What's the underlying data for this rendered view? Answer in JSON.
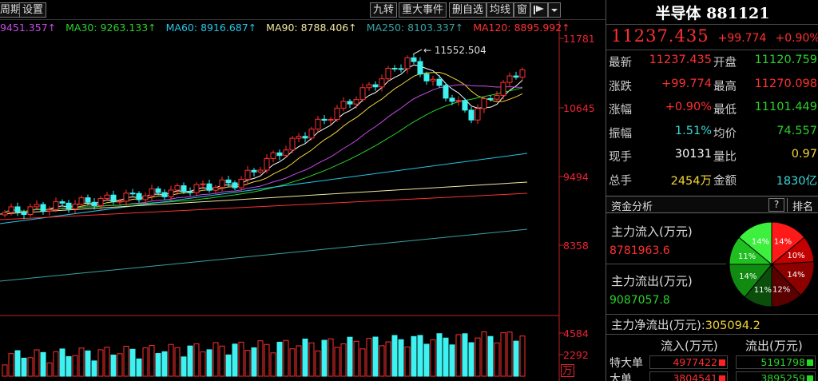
{
  "toolbar": {
    "left_items": [
      "周期",
      "设置"
    ],
    "right_items": [
      "九转",
      "重大事件",
      "删自选",
      "均线",
      "窗"
    ]
  },
  "ma_legend": [
    {
      "text": "9451.357↑",
      "color": "#c44ce6"
    },
    {
      "text": "MA30: 9263.133↑",
      "color": "#2ad12a"
    },
    {
      "text": "MA60: 8916.687↑",
      "color": "#25c4e8"
    },
    {
      "text": "MA90: 8788.406↑",
      "color": "#f2e6a0"
    },
    {
      "text": "MA250: 8103.337↑",
      "color": "#3aa3a3"
    },
    {
      "text": "MA120: 8895.992↑",
      "color": "#ff3030"
    }
  ],
  "chart": {
    "y_ticks": [
      "11781",
      "10645",
      "9494",
      "8358"
    ],
    "vol_ticks": [
      "4584",
      "2292"
    ],
    "vol_unit": "万",
    "annotation": "11552.504",
    "colors": {
      "up": "#ff3030",
      "down": "#3ff2f2"
    }
  },
  "quote": {
    "name": "半导体",
    "code": "881121",
    "price": "11237.435",
    "change": "+99.774",
    "change_pct": "+0.90%",
    "rows": [
      {
        "l": "最新",
        "v1": "11237.435",
        "c1": "red",
        "l2": "开盘",
        "v2": "11120.759",
        "c2": "green"
      },
      {
        "l": "涨跌",
        "v1": "+99.774",
        "c1": "red",
        "l2": "最高",
        "v2": "11270.098",
        "c2": "red"
      },
      {
        "l": "涨幅",
        "v1": "+0.90%",
        "c1": "red",
        "l2": "最低",
        "v2": "11101.449",
        "c2": "green"
      },
      {
        "l": "振幅",
        "v1": "1.51%",
        "c1": "cyan",
        "l2": "均价",
        "v2": "74.557",
        "c2": "green"
      },
      {
        "l": "现手",
        "v1": "30131",
        "c1": "white",
        "l2": "量比",
        "v2": "0.97",
        "c2": "yellow"
      },
      {
        "l": "总手",
        "v1": "2454万",
        "c1": "yellow",
        "l2": "金额",
        "v2": "1830亿",
        "c2": "cyan"
      }
    ]
  },
  "fund": {
    "title": "资金分析",
    "help": "?",
    "rank": "排名",
    "inflow_label": "主力流入(万元)",
    "inflow_value": "8781963.6",
    "outflow_label": "主力流出(万元)",
    "outflow_value": "9087057.8",
    "net_label": "主力净流出(万元):",
    "net_value": "305094.2",
    "pie": [
      {
        "label": "14%",
        "value": 14,
        "color": "#ff1a1a"
      },
      {
        "label": "10%",
        "value": 10,
        "color": "#c40000"
      },
      {
        "label": "14%",
        "value": 14,
        "color": "#8c0000"
      },
      {
        "label": "12%",
        "value": 12,
        "color": "#5a0000"
      },
      {
        "label": "11%",
        "value": 11,
        "color": "#0b4d0b"
      },
      {
        "label": "14%",
        "value": 14,
        "color": "#118a11"
      },
      {
        "label": "11%",
        "value": 11,
        "color": "#1fbf1f"
      },
      {
        "label": "14%",
        "value": 14,
        "color": "#3df03d"
      }
    ],
    "table_headers": [
      "流入(万元)",
      "流出(万元)"
    ],
    "table_rows": [
      {
        "name": "特大单",
        "in": "4977422",
        "out": "5191798"
      },
      {
        "name": "大单",
        "in": "3804541",
        "out": "3895259"
      }
    ]
  }
}
